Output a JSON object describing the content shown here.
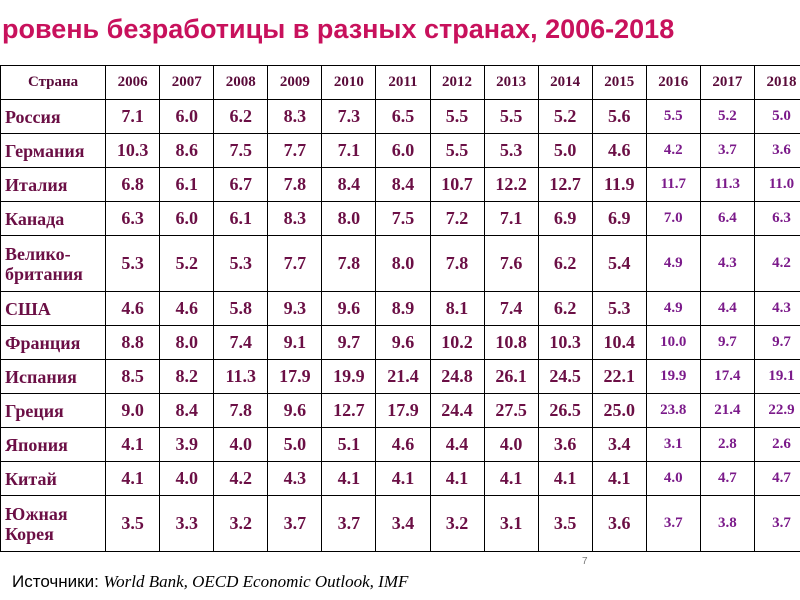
{
  "title": "ровень безработицы в разных странах, 2006-2018",
  "table": {
    "header": [
      "Страна",
      "2006",
      "2007",
      "2008",
      "2009",
      "2010",
      "2011",
      "2012",
      "2013",
      "2014",
      "2015",
      "2016",
      "2017",
      "2018"
    ],
    "rows": [
      [
        "Россия",
        "7.1",
        "6.0",
        "6.2",
        "8.3",
        "7.3",
        "6.5",
        "5.5",
        "5.5",
        "5.2",
        "5.6",
        "5.5",
        "5.2",
        "5.0"
      ],
      [
        "Германия",
        "10.3",
        "8.6",
        "7.5",
        "7.7",
        "7.1",
        "6.0",
        "5.5",
        "5.3",
        "5.0",
        "4.6",
        "4.2",
        "3.7",
        "3.6"
      ],
      [
        "Италия",
        "6.8",
        "6.1",
        "6.7",
        "7.8",
        "8.4",
        "8.4",
        "10.7",
        "12.2",
        "12.7",
        "11.9",
        "11.7",
        "11.3",
        "11.0"
      ],
      [
        "Канада",
        "6.3",
        "6.0",
        "6.1",
        "8.3",
        "8.0",
        "7.5",
        "7.2",
        "7.1",
        "6.9",
        "6.9",
        "7.0",
        "6.4",
        "6.3"
      ],
      [
        "Велико-\nбритания",
        "5.3",
        "5.2",
        "5.3",
        "7.7",
        "7.8",
        "8.0",
        "7.8",
        "7.6",
        "6.2",
        "5.4",
        "4.9",
        "4.3",
        "4.2"
      ],
      [
        "США",
        "4.6",
        "4.6",
        "5.8",
        "9.3",
        "9.6",
        "8.9",
        "8.1",
        "7.4",
        "6.2",
        "5.3",
        "4.9",
        "4.4",
        "4.3"
      ],
      [
        "Франция",
        "8.8",
        "8.0",
        "7.4",
        "9.1",
        "9.7",
        "9.6",
        "10.2",
        "10.8",
        "10.3",
        "10.4",
        "10.0",
        "9.7",
        "9.7"
      ],
      [
        "Испания",
        "8.5",
        "8.2",
        "11.3",
        "17.9",
        "19.9",
        "21.4",
        "24.8",
        "26.1",
        "24.5",
        "22.1",
        "19.9",
        "17.4",
        "19.1"
      ],
      [
        "Греция",
        "9.0",
        "8.4",
        "7.8",
        "9.6",
        "12.7",
        "17.9",
        "24.4",
        "27.5",
        "26.5",
        "25.0",
        "23.8",
        "21.4",
        "22.9"
      ],
      [
        "Япония",
        "4.1",
        "3.9",
        "4.0",
        "5.0",
        "5.1",
        "4.6",
        "4.4",
        "4.0",
        "3.6",
        "3.4",
        "3.1",
        "2.8",
        "2.6"
      ],
      [
        "Китай",
        "4.1",
        "4.0",
        "4.2",
        "4.3",
        "4.1",
        "4.1",
        "4.1",
        "4.1",
        "4.1",
        "4.1",
        "4.0",
        "4.7",
        "4.7"
      ],
      [
        "Южная\nКорея",
        "3.5",
        "3.3",
        "3.2",
        "3.7",
        "3.7",
        "3.4",
        "3.2",
        "3.1",
        "3.5",
        "3.6",
        "3.7",
        "3.8",
        "3.7"
      ]
    ]
  },
  "source": {
    "label": "Источники:",
    "text": "World Bank, OECD Economic Outlook, IMF"
  },
  "page_number": "7"
}
